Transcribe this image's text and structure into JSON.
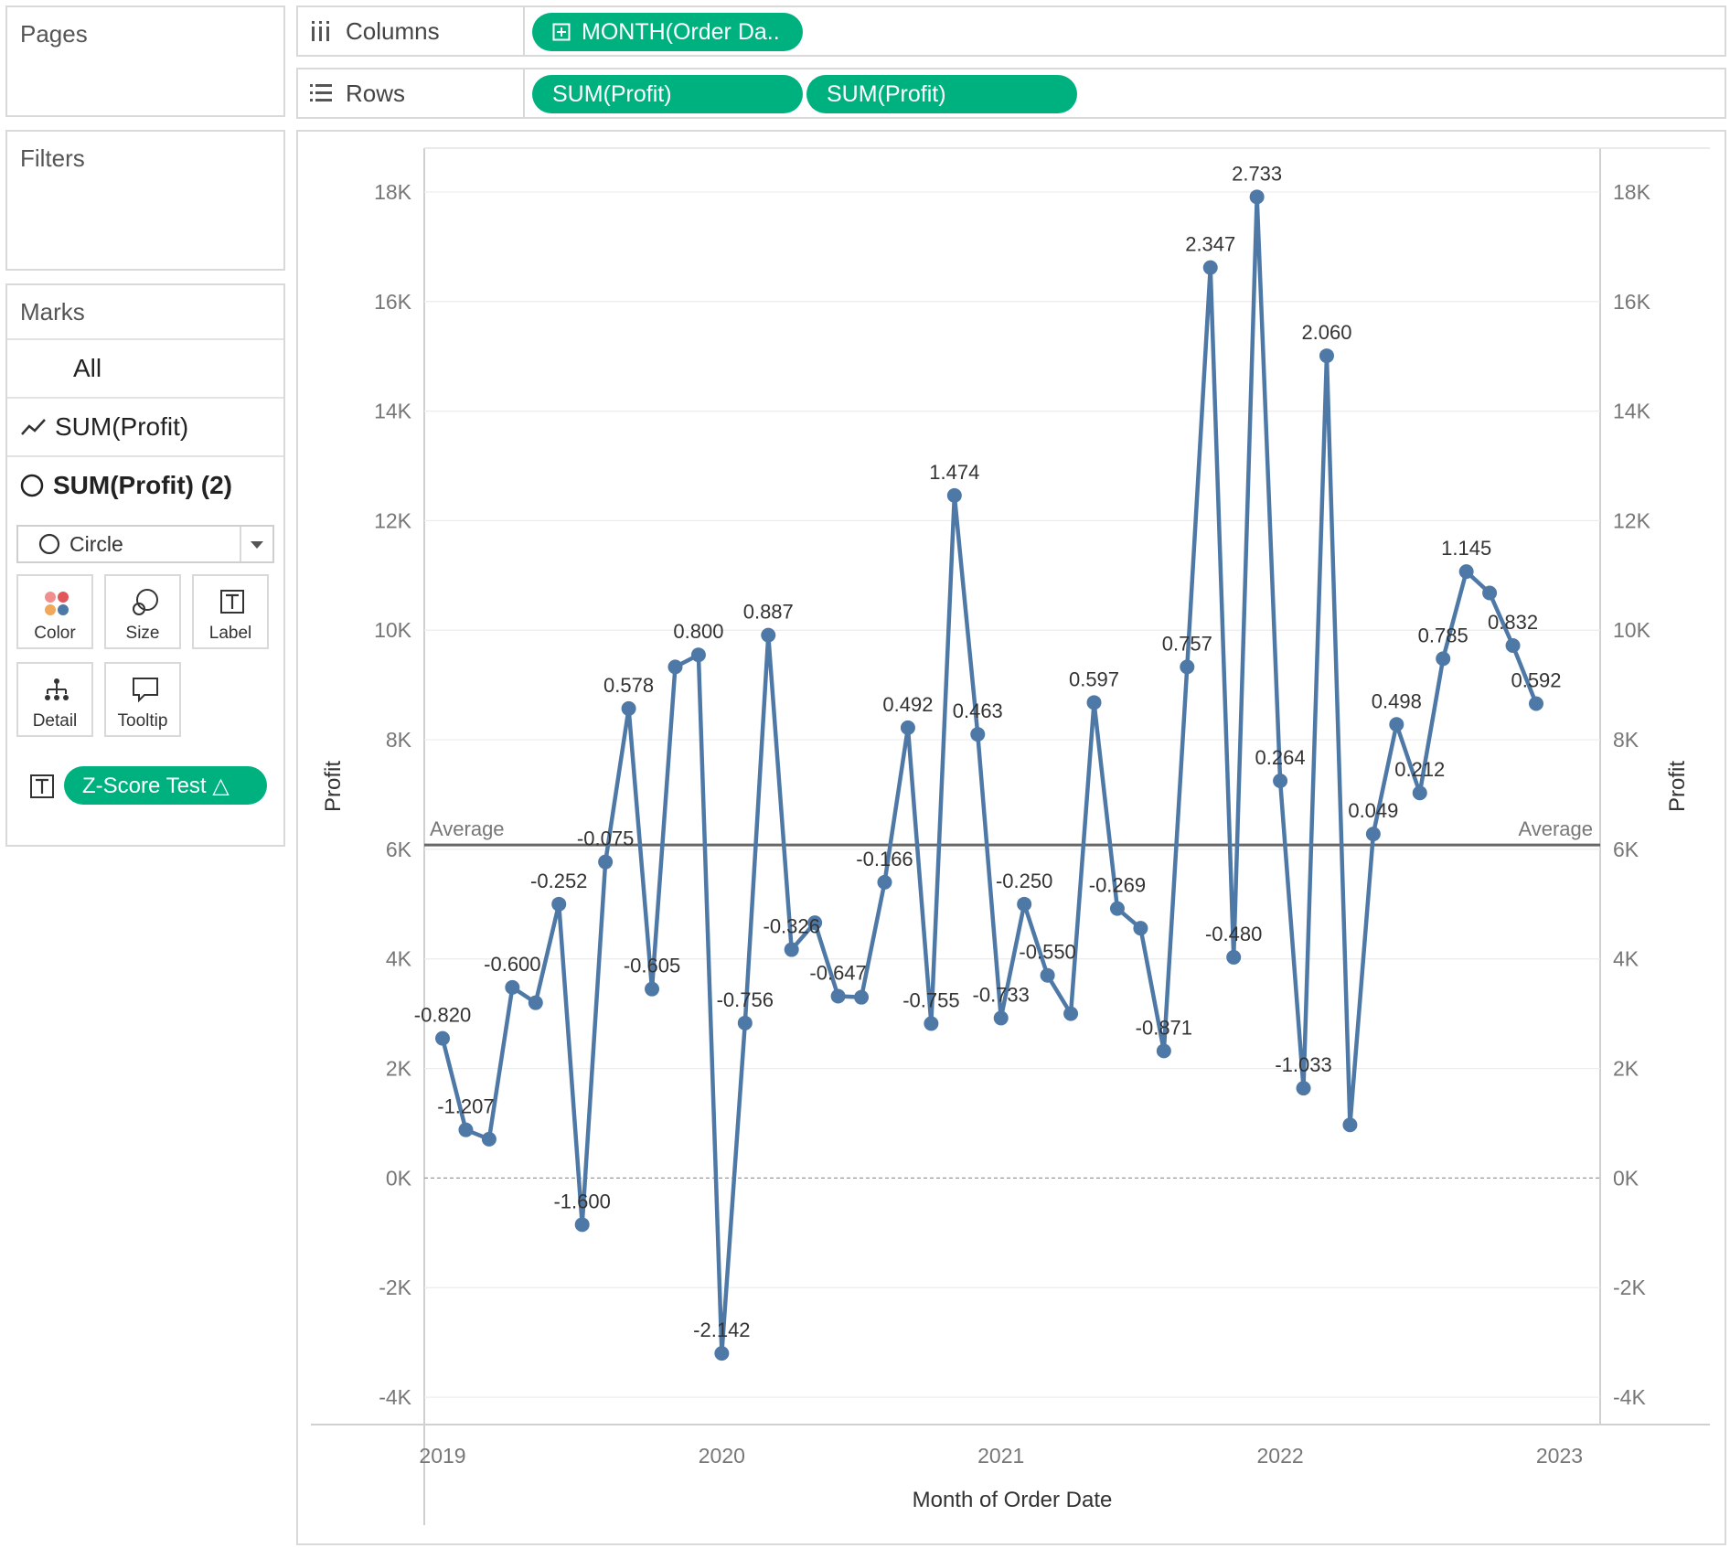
{
  "pages": {
    "title": "Pages"
  },
  "filters": {
    "title": "Filters"
  },
  "marks": {
    "title": "Marks",
    "all_label": "All",
    "layer1_label": "SUM(Profit)",
    "layer2_label": "SUM(Profit) (2)",
    "mark_type": "Circle",
    "buttons": {
      "color": "Color",
      "size": "Size",
      "label": "Label",
      "detail": "Detail",
      "tooltip": "Tooltip"
    },
    "label_pill": "Z-Score Test △"
  },
  "shelves": {
    "columns_label": "Columns",
    "columns_pill": "MONTH(Order Da..",
    "rows_label": "Rows",
    "rows_pill_1": "SUM(Profit)",
    "rows_pill_2": "SUM(Profit)"
  },
  "chart_data": {
    "type": "line",
    "xlabel": "Month of Order Date",
    "ylabel_left": "Profit",
    "ylabel_right": "Profit",
    "x_ticks": [
      "2019",
      "2020",
      "2021",
      "2022",
      "2023"
    ],
    "y_ticks": [
      "18K",
      "16K",
      "14K",
      "12K",
      "10K",
      "8K",
      "6K",
      "4K",
      "2K",
      "0K",
      "-2K",
      "-4K"
    ],
    "y_tick_values": [
      18000,
      16000,
      14000,
      12000,
      10000,
      8000,
      6000,
      4000,
      2000,
      0,
      -2000,
      -4000
    ],
    "ylim": [
      -4500,
      18800
    ],
    "reference_line": {
      "label_left": "Average",
      "label_right": "Average",
      "value": 6080
    },
    "line_color": "#4e79a7",
    "series": [
      {
        "x": [
          "2019-01",
          "2019-02",
          "2019-03",
          "2019-04",
          "2019-05",
          "2019-06",
          "2019-07",
          "2019-08",
          "2019-09",
          "2019-10",
          "2019-11",
          "2019-12",
          "2020-01",
          "2020-02",
          "2020-03",
          "2020-04",
          "2020-05",
          "2020-06",
          "2020-07",
          "2020-08",
          "2020-09",
          "2020-10",
          "2020-11",
          "2020-12",
          "2021-01",
          "2021-02",
          "2021-03",
          "2021-04",
          "2021-05",
          "2021-06",
          "2021-07",
          "2021-08",
          "2021-09",
          "2021-10",
          "2021-11",
          "2021-12",
          "2022-01",
          "2022-02",
          "2022-03",
          "2022-04",
          "2022-05",
          "2022-06",
          "2022-07",
          "2022-08",
          "2022-09",
          "2022-10",
          "2022-11",
          "2022-12"
        ],
        "values": [
          2550,
          880,
          710,
          3480,
          3200,
          5000,
          -850,
          5770,
          8570,
          3450,
          9330,
          9550,
          -3200,
          2830,
          9910,
          4170,
          4660,
          3320,
          3300,
          5400,
          8220,
          2820,
          12460,
          8100,
          2920,
          5000,
          3700,
          3000,
          8680,
          4920,
          4560,
          2320,
          9330,
          16620,
          4030,
          17910,
          7250,
          1640,
          15010,
          970,
          6280,
          8280,
          7030,
          9480,
          11070,
          10680,
          9720,
          8660
        ],
        "labels": [
          "-0.820",
          "-1.207",
          "",
          "-0.600",
          "",
          "-0.252",
          "-1.600",
          "-0.075",
          "0.578",
          "-0.605",
          "",
          "0.800",
          "-2.142",
          "-0.756",
          "0.887",
          "-0.326",
          "",
          "-0.647",
          "",
          "-0.166",
          "0.492",
          "-0.755",
          "1.474",
          "0.463",
          "-0.733",
          "-0.250",
          "-0.550",
          "",
          "0.597",
          "-0.269",
          "",
          "-0.871",
          "0.757",
          "2.347",
          "-0.480",
          "2.733",
          "0.264",
          "-1.033",
          "2.060",
          "",
          "0.049",
          "0.498",
          "0.212",
          "0.785",
          "1.145",
          "",
          "0.832",
          "0.592"
        ]
      }
    ]
  }
}
